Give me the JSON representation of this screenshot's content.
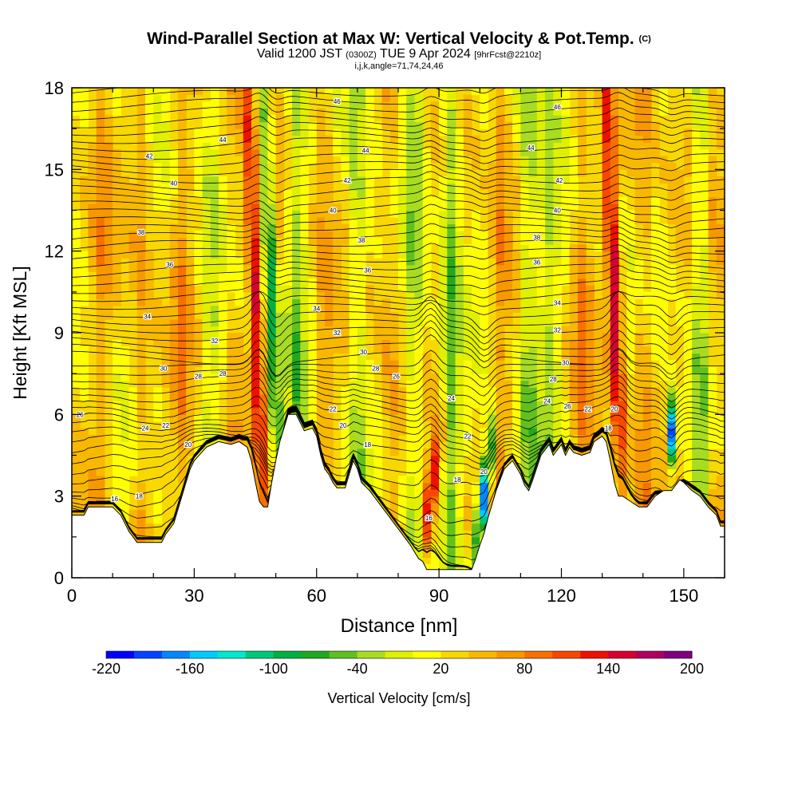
{
  "title": {
    "main": "Wind-Parallel Section at Max W: Vertical Velocity & Pot.Temp.",
    "copyright": "(C)",
    "valid_prefix": "Valid 1200 JST",
    "valid_utc": "(0300Z)",
    "valid_date": "TUE 9 Apr 2024",
    "forecast": "[9hrFcst@2210z]",
    "indices": "i,j,k,angle=71,74,24,46"
  },
  "chart_data": {
    "type": "heatmap",
    "xlabel": "Distance [nm]",
    "ylabel": "Height [Kft MSL]",
    "xlim": [
      0,
      160
    ],
    "ylim": [
      0,
      18
    ],
    "x_ticks": [
      0,
      30,
      60,
      90,
      120,
      150
    ],
    "y_ticks": [
      0,
      3,
      6,
      9,
      12,
      15,
      18
    ],
    "terrain": [
      [
        0,
        2.3
      ],
      [
        3,
        2.3
      ],
      [
        4,
        2.6
      ],
      [
        10,
        2.6
      ],
      [
        12,
        2.3
      ],
      [
        13,
        2.0
      ],
      [
        14,
        1.7
      ],
      [
        15,
        1.5
      ],
      [
        16,
        1.3
      ],
      [
        22,
        1.3
      ],
      [
        23,
        1.6
      ],
      [
        25,
        2.0
      ],
      [
        26,
        2.5
      ],
      [
        27,
        3.0
      ],
      [
        28,
        3.5
      ],
      [
        29,
        4.0
      ],
      [
        30,
        4.3
      ],
      [
        33,
        4.8
      ],
      [
        36,
        5.0
      ],
      [
        39,
        4.9
      ],
      [
        41,
        5.0
      ],
      [
        43,
        4.8
      ],
      [
        44,
        4.3
      ],
      [
        45,
        3.5
      ],
      [
        46,
        2.8
      ],
      [
        47,
        2.6
      ],
      [
        48,
        2.6
      ],
      [
        49,
        3.5
      ],
      [
        50,
        4.3
      ],
      [
        51,
        5.0
      ],
      [
        52,
        5.5
      ],
      [
        53,
        6.0
      ],
      [
        55,
        6.0
      ],
      [
        56,
        5.7
      ],
      [
        57,
        5.4
      ],
      [
        59,
        5.5
      ],
      [
        60,
        5.2
      ],
      [
        61,
        4.5
      ],
      [
        62,
        4.0
      ],
      [
        63,
        3.8
      ],
      [
        64,
        3.5
      ],
      [
        65,
        3.3
      ],
      [
        67,
        3.3
      ],
      [
        68,
        3.8
      ],
      [
        69,
        4.3
      ],
      [
        70,
        4.0
      ],
      [
        71,
        3.5
      ],
      [
        73,
        3.2
      ],
      [
        75,
        2.8
      ],
      [
        77,
        2.4
      ],
      [
        79,
        2.0
      ],
      [
        81,
        1.6
      ],
      [
        83,
        1.2
      ],
      [
        85,
        0.7
      ],
      [
        86,
        0.6
      ],
      [
        87,
        0.3
      ],
      [
        98,
        0.3
      ],
      [
        99,
        0.7
      ],
      [
        100,
        1.2
      ],
      [
        101,
        1.6
      ],
      [
        102,
        2.2
      ],
      [
        104,
        3.2
      ],
      [
        106,
        4.0
      ],
      [
        108,
        4.3
      ],
      [
        110,
        3.8
      ],
      [
        111,
        3.4
      ],
      [
        112,
        3.2
      ],
      [
        113,
        3.6
      ],
      [
        115,
        4.5
      ],
      [
        117,
        4.9
      ],
      [
        118,
        4.5
      ],
      [
        119,
        4.7
      ],
      [
        120,
        4.9
      ],
      [
        121,
        4.5
      ],
      [
        122,
        4.8
      ],
      [
        123,
        4.6
      ],
      [
        125,
        4.5
      ],
      [
        127,
        4.6
      ],
      [
        128,
        5.0
      ],
      [
        130,
        5.2
      ],
      [
        131,
        5.0
      ],
      [
        132,
        4.3
      ],
      [
        133,
        3.5
      ],
      [
        134,
        3.0
      ],
      [
        135,
        3.0
      ],
      [
        137,
        2.8
      ],
      [
        139,
        2.6
      ],
      [
        141,
        2.6
      ],
      [
        143,
        3.0
      ],
      [
        145,
        3.2
      ],
      [
        147,
        3.2
      ],
      [
        149,
        3.6
      ],
      [
        150,
        3.5
      ],
      [
        152,
        3.2
      ],
      [
        154,
        3.0
      ],
      [
        156,
        2.6
      ],
      [
        158,
        2.3
      ],
      [
        159,
        1.9
      ],
      [
        160,
        1.9
      ]
    ],
    "theta_levels_K": [
      16,
      18,
      20,
      22,
      24,
      26,
      28,
      30,
      32,
      34,
      36,
      38,
      40,
      42,
      44,
      46,
      48
    ],
    "theta_labels": [
      {
        "x": 10.5,
        "y": 2.9,
        "text": "16"
      },
      {
        "x": 16.5,
        "y": 3.0,
        "text": "18"
      },
      {
        "x": 28.5,
        "y": 4.9,
        "text": "20"
      },
      {
        "x": 23,
        "y": 5.6,
        "text": "22"
      },
      {
        "x": 18,
        "y": 5.5,
        "text": "24"
      },
      {
        "x": 2,
        "y": 6.0,
        "text": "26"
      },
      {
        "x": 31,
        "y": 7.4,
        "text": "28"
      },
      {
        "x": 37,
        "y": 7.5,
        "text": "28"
      },
      {
        "x": 22.5,
        "y": 7.7,
        "text": "30"
      },
      {
        "x": 35,
        "y": 8.7,
        "text": "32"
      },
      {
        "x": 18.5,
        "y": 9.6,
        "text": "34"
      },
      {
        "x": 24,
        "y": 11.5,
        "text": "36"
      },
      {
        "x": 17,
        "y": 12.7,
        "text": "38"
      },
      {
        "x": 25,
        "y": 14.5,
        "text": "40"
      },
      {
        "x": 19,
        "y": 15.5,
        "text": "42"
      },
      {
        "x": 37,
        "y": 16.1,
        "text": "44"
      },
      {
        "x": 64,
        "y": 6.2,
        "text": "22"
      },
      {
        "x": 66.5,
        "y": 5.6,
        "text": "20"
      },
      {
        "x": 72.5,
        "y": 4.9,
        "text": "18"
      },
      {
        "x": 71.5,
        "y": 8.3,
        "text": "30"
      },
      {
        "x": 65,
        "y": 9.0,
        "text": "32"
      },
      {
        "x": 60,
        "y": 9.9,
        "text": "34"
      },
      {
        "x": 72.5,
        "y": 11.3,
        "text": "36"
      },
      {
        "x": 71,
        "y": 12.4,
        "text": "38"
      },
      {
        "x": 64,
        "y": 13.5,
        "text": "40"
      },
      {
        "x": 67.5,
        "y": 14.6,
        "text": "42"
      },
      {
        "x": 72,
        "y": 15.7,
        "text": "44"
      },
      {
        "x": 65,
        "y": 17.5,
        "text": "46"
      },
      {
        "x": 74.5,
        "y": 7.7,
        "text": "28"
      },
      {
        "x": 79.5,
        "y": 7.4,
        "text": "26"
      },
      {
        "x": 93,
        "y": 6.6,
        "text": "24"
      },
      {
        "x": 97,
        "y": 5.2,
        "text": "22"
      },
      {
        "x": 101,
        "y": 3.9,
        "text": "20"
      },
      {
        "x": 94.5,
        "y": 3.6,
        "text": "18"
      },
      {
        "x": 87.5,
        "y": 2.2,
        "text": "16"
      },
      {
        "x": 119,
        "y": 9.1,
        "text": "32"
      },
      {
        "x": 119,
        "y": 10.1,
        "text": "34"
      },
      {
        "x": 114,
        "y": 11.6,
        "text": "36"
      },
      {
        "x": 114,
        "y": 12.5,
        "text": "38"
      },
      {
        "x": 119,
        "y": 13.5,
        "text": "40"
      },
      {
        "x": 119.5,
        "y": 14.6,
        "text": "42"
      },
      {
        "x": 112.5,
        "y": 15.8,
        "text": "44"
      },
      {
        "x": 119,
        "y": 17.3,
        "text": "46"
      },
      {
        "x": 121,
        "y": 7.9,
        "text": "30"
      },
      {
        "x": 118,
        "y": 7.3,
        "text": "28"
      },
      {
        "x": 116.5,
        "y": 6.5,
        "text": "24"
      },
      {
        "x": 121.5,
        "y": 6.3,
        "text": "26"
      },
      {
        "x": 126.5,
        "y": 6.2,
        "text": "22"
      },
      {
        "x": 133,
        "y": 6.2,
        "text": "20"
      },
      {
        "x": 131.5,
        "y": 5.5,
        "text": "18"
      }
    ],
    "colorbar": {
      "label": "Vertical Velocity [cm/s]",
      "ticks": [
        -220,
        -160,
        -100,
        -40,
        20,
        80,
        140,
        200
      ],
      "bins": [
        -220,
        -200,
        -180,
        -160,
        -140,
        -120,
        -100,
        -80,
        -60,
        -40,
        -20,
        0,
        20,
        40,
        60,
        80,
        100,
        120,
        140,
        160,
        180,
        200
      ],
      "colors": [
        "#0000ff",
        "#0044ff",
        "#0088ff",
        "#00ccff",
        "#00e8d0",
        "#00c878",
        "#00b040",
        "#20a820",
        "#60c020",
        "#a8dc20",
        "#e0f000",
        "#ffff00",
        "#f8d800",
        "#f8b800",
        "#f89800",
        "#f87000",
        "#f84800",
        "#f01000",
        "#d80030",
        "#b00060",
        "#800080"
      ]
    },
    "updrafts": [
      {
        "x": 46,
        "peak": 150,
        "kind": "column"
      },
      {
        "x": 50,
        "peak": -90,
        "kind": "column"
      },
      {
        "x": 88,
        "peak": 150,
        "kind": "low"
      },
      {
        "x": 101,
        "peak": -200,
        "kind": "low"
      },
      {
        "x": 134,
        "peak": 160,
        "kind": "column"
      },
      {
        "x": 147,
        "peak": -200,
        "kind": "mid"
      }
    ]
  }
}
